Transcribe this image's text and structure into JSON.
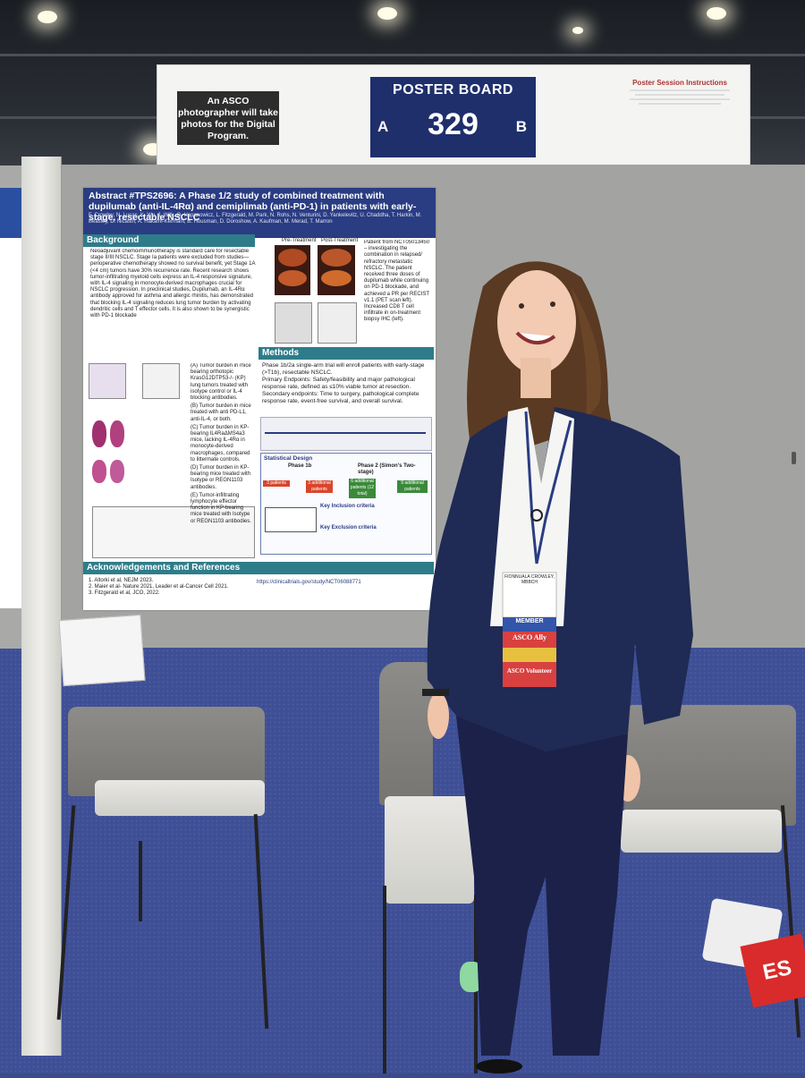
{
  "sign": {
    "photo_note": "An ASCO photographer will take photos for the Digital Program.",
    "board_label": "POSTER BOARD",
    "board_number": "329",
    "side_a": "A",
    "side_b": "B",
    "instructions_title": "Poster Session Instructions"
  },
  "poster": {
    "title": "Abstract #TPS2696: A Phase 1/2 study of combined treatment with dupilumab (anti-IL-4Rα) and cemiplimab (anti-PD-1) in patients with early-stage, resectable NSCLC",
    "authors": "F. Crowley, N. Lucas, K. Wu, J. Wilk, O. Hapanowicz, L. Fitzgerald, M. Park, N. Rohs, N. Venturini, D. Yankelevitz, U. Chaddha, T. Harkin, M. Beasley, D. Nicastri, A. Hakami-Kermani, B. Housman, D. Doroshow, A. Kaufman, M. Merad, T. Marron",
    "background_heading": "Background",
    "background_text": "Neoadjuvant chemoimmunotherapy is standard care for resectable stage II/III NSCLC. Stage Ia patients were excluded from studies—perioperative chemotherapy showed no survival benefit, yet Stage 1A (<4 cm) tumors have 30% recurrence rate. Recent research shows tumor-infiltrating myeloid cells express an IL-4 responsive signature, with IL-4 signaling in monocyte-derived macrophages crucial for NSCLC progression. In preclinical studies, Dupilumab, an IL-4Rα antibody approved for asthma and allergic rhinitis, has demonstrated that blocking IL-4 signaling reduces lung tumor burden by activating dendritic cells and T effector cells. It is also shown to be synergistic with PD-1 blockade",
    "case_text": "Patient from NCT05013450 – investigating the combination in relapsed/ refractory metastatic NSCLC. The patient received three doses of dupilumab while continuing on PD-1 blockade, and achieved a PR per RECIST v1.1 (PET scan left). Increased CD8 T cell infiltrate in on-treatment biopsy IHC (left).",
    "pre_label": "Pre-Treatment",
    "post_label": "Post-Treatment",
    "fig_text_a": "(A) Tumor burden in mice bearing orthotopic KrasG12DTP53-/- (KP) lung tumors treated with isotype control or IL-4 blocking antibodies.",
    "fig_text_b": "(B) Tumor burden in mice treated with anti PD-L1, anti-IL-4, or both.",
    "fig_text_c": "(C) Tumor burden in KP-bearing IL4RaΔMS4a3 mice, lacking IL-4Rα in monocyte-derived macrophages, compared to littermate controls.",
    "fig_text_d": "(D) Tumor burden in KP-bearing mice treated with Isotype or REGN1103 antibodies.",
    "fig_text_e": "(E) Tumor-infiltrating lymphocyte effector function in KP-bearing mice treated with Isotype or REGN1103 antibodies.",
    "methods_heading": "Methods",
    "methods_text": "Phase 1b/2a single-arm trial will enroll patients with early-stage (>T1b), resectable NSCLC.",
    "primary_endpoints": "Primary Endpoints: Safety/feasibility and major pathological response rate, defined as ≤10% viable tumor at resection.",
    "secondary_endpoints": "Secondary endpoints: Time to surgery, pathological complete response rate, event-free survival, and overall survival.",
    "design_heading": "Statistical Design",
    "phase1": "Phase 1b",
    "phase2": "Phase 2 (Simon's Two-stage)",
    "box1": "3 patients",
    "box2": "3 additional patients",
    "box3": "6 additional patients (12 total)",
    "box4": "9 additional patients",
    "inclusion_heading": "Key Inclusion criteria",
    "exclusion_heading": "Key Exclusion criteria",
    "ack_heading": "Acknowledgements and References",
    "refs": [
      "1. Altorki et al, NEJM 2023.",
      "2. Maier et al- Nature 2021, Leader et al-Cancer Cell 2021.",
      "3. Fitzgerald et al, JCO, 2022."
    ],
    "link": "https://clinicaltrials.gov/study/NCT06088771"
  },
  "badge": {
    "name": "FIONNUALA CROWLEY, MBBCH",
    "member": "MEMBER",
    "ally": "ASCO Ally",
    "volunteer": "ASCO Volunteer"
  },
  "bag_text": "ES"
}
